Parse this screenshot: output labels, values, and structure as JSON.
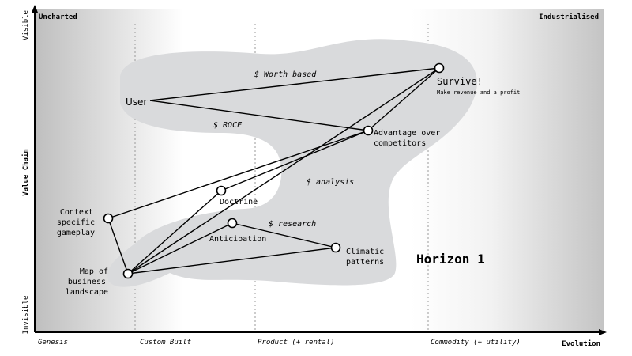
{
  "corners": {
    "top_left": "Uncharted",
    "top_right": "Industrialised"
  },
  "y_axis": {
    "top": "Visible",
    "middle": "Value Chain",
    "bottom": "Invisible"
  },
  "x_axis": {
    "stages": [
      "Genesis",
      "Custom Built",
      "Product (+ rental)",
      "Commodity (+ utility)"
    ],
    "end_label": "Evolution"
  },
  "nodes": {
    "user": "User",
    "survive": "Survive!",
    "survive_sub": "Make revenue and a profit",
    "advantage_l1": "Advantage over",
    "advantage_l2": "competitors",
    "doctrine": "Doctrine",
    "anticipation": "Anticipation",
    "climatic_l1": "Climatic",
    "climatic_l2": "patterns",
    "context_l1": "Context",
    "context_l2": "specific",
    "context_l3": "gameplay",
    "map_l1": "Map of",
    "map_l2": "business",
    "map_l3": "landscape"
  },
  "edge_labels": {
    "worth": "$ Worth based",
    "roce": "$ ROCE",
    "analysis": "$ analysis",
    "research": "$ research"
  },
  "horizon_label": "Horizon 1",
  "colors": {
    "blob": "#d9dadc",
    "axis": "#000000",
    "divider": "#9a9a9a"
  }
}
